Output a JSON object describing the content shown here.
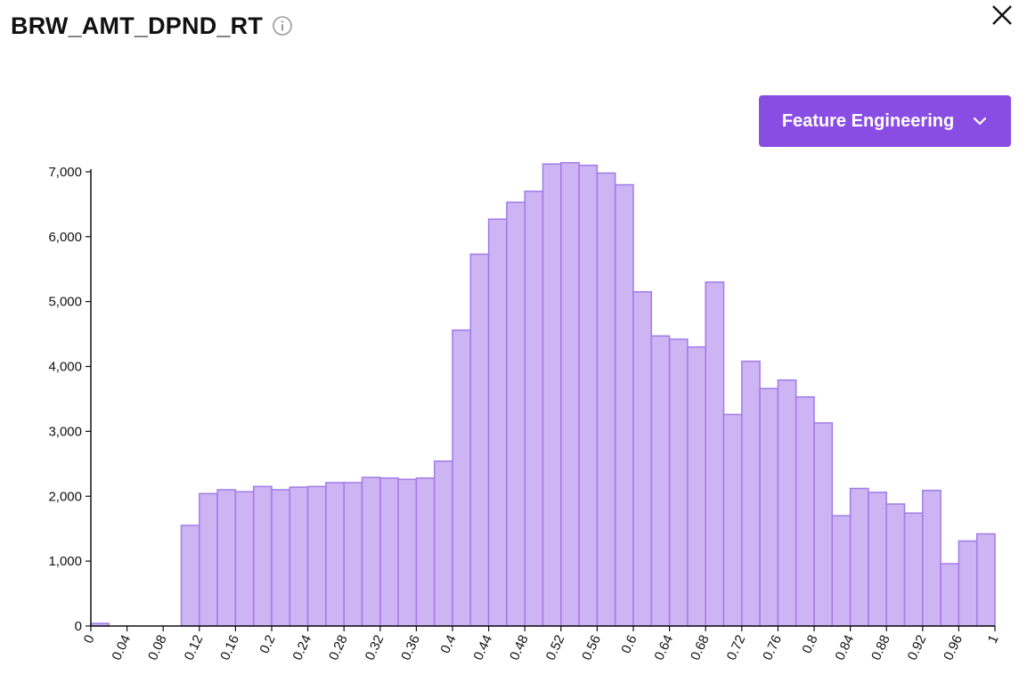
{
  "header": {
    "title": "BRW_AMT_DPND_RT"
  },
  "toolbar": {
    "feature_engineering_label": "Feature Engineering"
  },
  "colors": {
    "accent": "#8a4de4",
    "bar_fill": "#cdb4f3",
    "bar_stroke": "#a27be8"
  },
  "chart_data": {
    "type": "bar",
    "title": "BRW_AMT_DPND_RT",
    "xlabel": "",
    "ylabel": "",
    "bin_width": 0.02,
    "xlim": [
      0,
      1
    ],
    "ylim": [
      0,
      7000
    ],
    "bins": [
      0,
      0.02,
      0.04,
      0.06,
      0.08,
      0.1,
      0.12,
      0.14,
      0.16,
      0.18,
      0.2,
      0.22,
      0.24,
      0.26,
      0.28,
      0.3,
      0.32,
      0.34,
      0.36,
      0.38,
      0.4,
      0.42,
      0.44,
      0.46,
      0.48,
      0.5,
      0.52,
      0.54,
      0.56,
      0.58,
      0.6,
      0.62,
      0.64,
      0.66,
      0.68,
      0.7,
      0.72,
      0.74,
      0.76,
      0.78,
      0.8,
      0.82,
      0.84,
      0.86,
      0.88,
      0.9,
      0.92,
      0.94,
      0.96,
      0.98
    ],
    "values": [
      40,
      0,
      0,
      0,
      0,
      1550,
      2040,
      2100,
      2070,
      2150,
      2100,
      2140,
      2150,
      2210,
      2210,
      2290,
      2280,
      2260,
      2280,
      2540,
      4560,
      5730,
      6270,
      6530,
      6700,
      7120,
      7140,
      7100,
      6980,
      6800,
      5150,
      4470,
      4420,
      4300,
      5300,
      3260,
      4080,
      3660,
      3790,
      3530,
      3130,
      1700,
      2120,
      2060,
      1880,
      1740,
      2090,
      960,
      1310,
      1420
    ],
    "y_ticks": [
      0,
      1000,
      2000,
      3000,
      4000,
      5000,
      6000,
      7000
    ],
    "y_tick_labels": [
      "0",
      "1,000",
      "2,000",
      "3,000",
      "4,000",
      "5,000",
      "6,000",
      "7,000"
    ],
    "x_ticks": [
      0,
      0.04,
      0.08,
      0.12,
      0.16,
      0.2,
      0.24,
      0.28,
      0.32,
      0.36,
      0.4,
      0.44,
      0.48,
      0.52,
      0.56,
      0.6,
      0.64,
      0.68,
      0.72,
      0.76,
      0.8,
      0.84,
      0.88,
      0.92,
      0.96,
      1
    ],
    "x_tick_labels": [
      "0",
      "0.04",
      "0.08",
      "0.12",
      "0.16",
      "0.2",
      "0.24",
      "0.28",
      "0.32",
      "0.36",
      "0.4",
      "0.44",
      "0.48",
      "0.52",
      "0.56",
      "0.6",
      "0.64",
      "0.68",
      "0.72",
      "0.76",
      "0.8",
      "0.84",
      "0.88",
      "0.92",
      "0.96",
      "1"
    ]
  }
}
